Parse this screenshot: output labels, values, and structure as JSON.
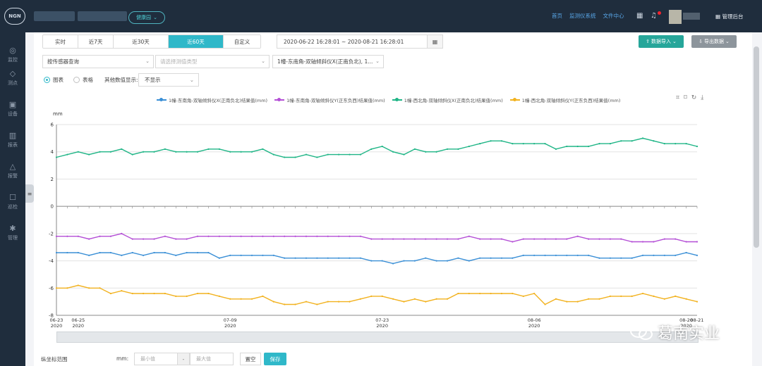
{
  "topbar": {
    "logo": "NGN",
    "project": "健康园",
    "nav": [
      "首页",
      "监测仪系统",
      "文件中心"
    ],
    "admin": "管理后台"
  },
  "sidebar": [
    {
      "label": "监控",
      "icon": "monitor-icon"
    },
    {
      "label": "测点",
      "icon": "tag-icon"
    },
    {
      "label": "设备",
      "icon": "device-icon"
    },
    {
      "label": "报表",
      "icon": "report-icon"
    },
    {
      "label": "报警",
      "icon": "bell-icon"
    },
    {
      "label": "巡检",
      "icon": "inspect-icon"
    },
    {
      "label": "管理",
      "icon": "gear-icon"
    }
  ],
  "tabs": [
    "实时",
    "近7天",
    "近30天",
    "近60天",
    "自定义"
  ],
  "active_tab": "近60天",
  "date_range": "2020-06-22 16:28:01 ~ 2020-08-21 16:28:01",
  "buttons": {
    "import": "数据导入",
    "export": "导出数据",
    "clear": "置空",
    "save": "保存"
  },
  "filters": {
    "mode": "按传感器查询",
    "type_placeholder": "请选择测值类型",
    "sensor": "1幢-东南角-双轴倾斜仪X(正南负北), 1..."
  },
  "view": {
    "chart_label": "图表",
    "table_label": "表格",
    "other_label": "其他数值显示:",
    "other_value": "不显示"
  },
  "bottom": {
    "label": "纵坐标范围",
    "unit": "mm:",
    "min_placeholder": "最小值",
    "sep": "-",
    "max_placeholder": "最大值"
  },
  "watermark": "葛南实业",
  "colors": {
    "blue": "#3a8fd6",
    "purple": "#b44fd6",
    "green": "#1fb586",
    "orange": "#f2b21f",
    "teal": "#2fb8c9"
  },
  "chart_data": {
    "type": "line",
    "ylabel": "mm",
    "ylim": [
      -8,
      6
    ],
    "yticks": [
      -8,
      -6,
      -4,
      -2,
      0,
      2,
      4,
      6
    ],
    "x_ticks": [
      {
        "index": 0,
        "label": [
          "06-23",
          "2020"
        ]
      },
      {
        "index": 2,
        "label": [
          "06-25",
          "2020"
        ]
      },
      {
        "index": 16,
        "label": [
          "07-09",
          "2020"
        ]
      },
      {
        "index": 30,
        "label": [
          "07-23",
          "2020"
        ]
      },
      {
        "index": 44,
        "label": [
          "08-06",
          "2020"
        ]
      },
      {
        "index": 58,
        "label": [
          "08-20",
          "2020"
        ]
      },
      {
        "index": 59,
        "label": [
          "08-21",
          ""
        ]
      }
    ],
    "series": [
      {
        "name": "1幢-东南角-双轴倾斜仪X(正南负北)结果值(mm)",
        "color": "#3a8fd6",
        "values": [
          -3.4,
          -3.4,
          -3.4,
          -3.6,
          -3.4,
          -3.4,
          -3.6,
          -3.4,
          -3.6,
          -3.4,
          -3.4,
          -3.6,
          -3.4,
          -3.4,
          -3.4,
          -3.8,
          -3.6,
          -3.6,
          -3.6,
          -3.6,
          -3.6,
          -3.8,
          -3.8,
          -3.8,
          -3.8,
          -3.8,
          -3.8,
          -3.8,
          -3.8,
          -4.0,
          -4.0,
          -4.2,
          -4.0,
          -4.0,
          -3.8,
          -4.0,
          -4.0,
          -3.8,
          -4.0,
          -3.8,
          -3.8,
          -3.8,
          -3.8,
          -3.6,
          -3.6,
          -3.6,
          -3.6,
          -3.6,
          -3.6,
          -3.6,
          -3.8,
          -3.8,
          -3.8,
          -3.8,
          -3.6,
          -3.6,
          -3.6,
          -3.6,
          -3.4,
          -3.6
        ]
      },
      {
        "name": "1幢-东南角-双轴倾斜仪Y(正东负西)结果值(mm)",
        "color": "#b44fd6",
        "values": [
          -2.2,
          -2.2,
          -2.2,
          -2.4,
          -2.2,
          -2.2,
          -2.0,
          -2.4,
          -2.4,
          -2.4,
          -2.2,
          -2.4,
          -2.4,
          -2.2,
          -2.2,
          -2.2,
          -2.2,
          -2.2,
          -2.2,
          -2.2,
          -2.2,
          -2.2,
          -2.2,
          -2.2,
          -2.2,
          -2.2,
          -2.2,
          -2.2,
          -2.2,
          -2.4,
          -2.4,
          -2.4,
          -2.4,
          -2.4,
          -2.4,
          -2.4,
          -2.4,
          -2.4,
          -2.2,
          -2.4,
          -2.4,
          -2.4,
          -2.6,
          -2.4,
          -2.4,
          -2.4,
          -2.4,
          -2.4,
          -2.2,
          -2.4,
          -2.4,
          -2.4,
          -2.4,
          -2.6,
          -2.6,
          -2.6,
          -2.4,
          -2.4,
          -2.6,
          -2.6
        ]
      },
      {
        "name": "1幢-西北角-双轴倾斜仪X(正南负北)结果值(mm)",
        "color": "#1fb586",
        "values": [
          3.6,
          3.8,
          4.0,
          3.8,
          4.0,
          4.0,
          4.2,
          3.8,
          4.0,
          4.0,
          4.2,
          4.0,
          4.0,
          4.0,
          4.2,
          4.2,
          4.0,
          4.0,
          4.0,
          4.2,
          3.8,
          3.6,
          3.6,
          3.8,
          3.6,
          3.8,
          3.8,
          3.8,
          3.8,
          4.2,
          4.4,
          4.0,
          3.8,
          4.2,
          4.0,
          4.0,
          4.2,
          4.2,
          4.4,
          4.6,
          4.8,
          4.8,
          4.6,
          4.6,
          4.6,
          4.6,
          4.2,
          4.4,
          4.4,
          4.4,
          4.6,
          4.6,
          4.8,
          4.8,
          5.0,
          4.8,
          4.6,
          4.6,
          4.6,
          4.4
        ]
      },
      {
        "name": "1幢-西北角-双轴倾斜仪Y(正东负西)结果值(mm)",
        "color": "#f2b21f",
        "values": [
          -6.0,
          -6.0,
          -5.8,
          -6.0,
          -6.0,
          -6.4,
          -6.2,
          -6.4,
          -6.4,
          -6.4,
          -6.4,
          -6.6,
          -6.6,
          -6.4,
          -6.4,
          -6.6,
          -6.8,
          -6.8,
          -6.8,
          -6.6,
          -7.0,
          -7.2,
          -7.2,
          -7.0,
          -7.2,
          -7.0,
          -7.0,
          -7.0,
          -6.8,
          -6.6,
          -6.6,
          -6.8,
          -7.0,
          -6.8,
          -7.0,
          -6.8,
          -6.8,
          -6.4,
          -6.4,
          -6.4,
          -6.4,
          -6.4,
          -6.4,
          -6.6,
          -6.4,
          -7.2,
          -6.8,
          -7.0,
          -7.0,
          -6.8,
          -6.8,
          -6.6,
          -6.6,
          -6.6,
          -6.4,
          -6.6,
          -6.8,
          -6.6,
          -6.8,
          -7.0
        ]
      }
    ]
  }
}
